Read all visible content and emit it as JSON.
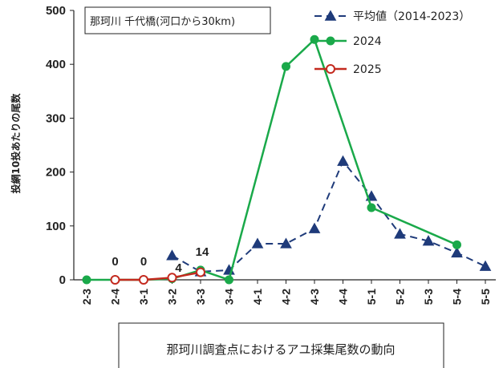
{
  "chart_data": {
    "type": "line",
    "title": "那珂川 千代橋(河口から30km)",
    "ylabel": "投網10投あたりの尾数",
    "xlabel": "",
    "ylim": [
      0,
      500
    ],
    "yticks": [
      0,
      100,
      200,
      300,
      400,
      500
    ],
    "grid": false,
    "legend_position": "top-right",
    "categories": [
      "2-3",
      "2-4",
      "3-1",
      "3-2",
      "3-3",
      "3-4",
      "4-1",
      "4-2",
      "4-3",
      "4-4",
      "5-1",
      "5-2",
      "5-3",
      "5-4",
      "5-5"
    ],
    "series": [
      {
        "name": "平均値（2014-2023）",
        "color": "#1f3b7a",
        "marker": "triangle",
        "line_style": "dashed",
        "values": [
          null,
          null,
          null,
          45,
          15,
          18,
          67,
          67,
          95,
          220,
          155,
          85,
          72,
          50,
          25
        ]
      },
      {
        "name": "2024",
        "color": "#1aa94a",
        "marker": "circle-filled",
        "line_style": "solid",
        "values": [
          0,
          null,
          0,
          2,
          18,
          0,
          null,
          396,
          446,
          null,
          134,
          null,
          null,
          65,
          null
        ]
      },
      {
        "name": "2025",
        "color": "#c42a1f",
        "marker": "circle-open",
        "line_style": "solid",
        "values": [
          null,
          0,
          0,
          4,
          14,
          null,
          null,
          null,
          null,
          null,
          null,
          null,
          null,
          null,
          null
        ]
      }
    ],
    "data_labels": [
      {
        "category": "2-4",
        "text": "0"
      },
      {
        "category": "3-1",
        "text": "0"
      },
      {
        "category": "3-2",
        "text": "4"
      },
      {
        "category": "3-3",
        "text": "14"
      }
    ]
  },
  "caption": "那珂川調査点におけるアユ採集尾数の動向"
}
